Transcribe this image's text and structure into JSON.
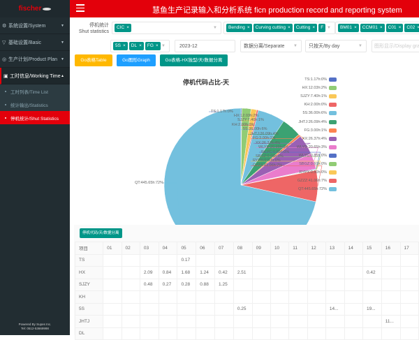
{
  "sidebar": {
    "logo": "fischer",
    "groups": [
      {
        "label": "系统设置/System",
        "icon": "gear-icon"
      },
      {
        "label": "基础设置/Basic",
        "icon": "filter-icon"
      },
      {
        "label": "生产计划/Product Plan",
        "icon": "plan-icon"
      },
      {
        "label": "工时信息/Working Time",
        "icon": "calendar-icon"
      }
    ],
    "items": [
      {
        "label": "工时列表/Time List"
      },
      {
        "label": "统计输出/Statistics"
      },
      {
        "label": "停机统计/Shut Statistics",
        "active": true
      }
    ],
    "footer": [
      "Powered By Supes Inc.",
      "Tel: 0512-53669998"
    ]
  },
  "header": {
    "title": "慧鱼生产记录输入和分析系统 ficn production record and reporting system",
    "accent": "#e3000b"
  },
  "filters": {
    "label_cn": "停机统计",
    "label_en": "Shut statistics",
    "select1": [
      "CIC"
    ],
    "select2": [
      "Bending",
      "Curving cutting",
      "Cutting",
      "F"
    ],
    "select3": [
      "BM01",
      "CCM01",
      "C01",
      "C02"
    ],
    "select4": [
      "5S",
      "DL",
      "FG"
    ],
    "month": "2023-12",
    "mode": "数据分离/Separate",
    "period": "只按天/By day",
    "display_placeholder": "图形显示/Display graph"
  },
  "buttons": {
    "table": "Go表格Table",
    "graph": "Go图形Graph",
    "hx": "Go表格-HX独型/天/数据分离"
  },
  "chart_data": {
    "type": "pie",
    "title": "停机代码占比-天",
    "start": "top",
    "direction": "clockwise",
    "slices": [
      {
        "name": "TS",
        "hours": 1.17,
        "label": "TS:1.17h:0%",
        "color": "#5470c6"
      },
      {
        "name": "HX",
        "hours": 12.03,
        "label": "HX:12.03h:2%",
        "color": "#91cc75"
      },
      {
        "name": "SJZY",
        "hours": 7.4,
        "label": "SJZY:7.40h:1%",
        "color": "#fac858"
      },
      {
        "name": "KH",
        "hours": 2.0,
        "label": "KH:2.00h:0%",
        "color": "#ee6666"
      },
      {
        "name": "5S",
        "hours": 36.0,
        "label": "5S:36.00h:6%",
        "color": "#73c0de"
      },
      {
        "name": "JHTJ",
        "hours": 26.09,
        "label": "JHTJ:26.09h:4%",
        "color": "#3ba272"
      },
      {
        "name": "FG",
        "hours": 3.0,
        "label": "FG:3.00h:1%",
        "color": "#fc8452"
      },
      {
        "name": "XX",
        "hours": 26.37,
        "label": "XX:26.37h:4%",
        "color": "#9a60b4"
      },
      {
        "name": "WLYD",
        "hours": 20.65,
        "label": "WLYD:20.65h:3%",
        "color": "#ea7ccc"
      },
      {
        "name": "WLYC",
        "hours": 0.85,
        "label": "WLYC:0.85h:0%",
        "color": "#5470c6"
      },
      {
        "name": "SBGZ",
        "hours": 0.6,
        "label": "SBGZ:0.60h:0%",
        "color": "#91cc75"
      },
      {
        "name": "RYPX",
        "hours": 0.5,
        "label": "RYPX:0.50h:0%",
        "color": "#fac858"
      },
      {
        "name": "GZZZ",
        "hours": 41.06,
        "label": "GZZZ:41.06h:7%",
        "color": "#ee6666"
      },
      {
        "name": "QT",
        "hours": 445.65,
        "label": "QT:445.65h:72%",
        "color": "#73c0de"
      }
    ],
    "legend": "right"
  },
  "table": {
    "button": "停机代码/天/数据分离",
    "headers": [
      "项目",
      "01",
      "02",
      "03",
      "04",
      "05",
      "06",
      "07",
      "08",
      "09",
      "10",
      "11",
      "12",
      "13",
      "14",
      "15",
      "16",
      "17"
    ],
    "rows": [
      [
        "TS",
        "",
        "",
        "",
        "",
        "0.17",
        "",
        "",
        "",
        "",
        "",
        "",
        "",
        "",
        "",
        "",
        "",
        ""
      ],
      [
        "HX",
        "",
        "",
        "2.09",
        "0.84",
        "1.68",
        "1.24",
        "0.42",
        "2.51",
        "",
        "",
        "",
        "",
        "",
        "",
        "0.42",
        "",
        ""
      ],
      [
        "SJZY",
        "",
        "",
        "0.48",
        "0.27",
        "0.28",
        "0.88",
        "1.25",
        "",
        "",
        "",
        "",
        "",
        "",
        "",
        "",
        "",
        ""
      ],
      [
        "KH",
        "",
        "",
        "",
        "",
        "",
        "",
        "",
        "",
        "",
        "",
        "",
        "",
        "",
        "",
        "",
        "",
        ""
      ],
      [
        "5S",
        "",
        "",
        "",
        "",
        "",
        "",
        "",
        "0.25",
        "",
        "",
        "",
        "",
        "14...",
        "",
        "19...",
        "",
        ""
      ],
      [
        "JHTJ",
        "",
        "",
        "",
        "",
        "",
        "",
        "",
        "",
        "",
        "",
        "",
        "",
        "",
        "",
        "",
        "11...",
        ""
      ],
      [
        "DL",
        "",
        "",
        "",
        "",
        "",
        "",
        "",
        "",
        "",
        "",
        "",
        "",
        "",
        "",
        "",
        "",
        ""
      ]
    ]
  }
}
